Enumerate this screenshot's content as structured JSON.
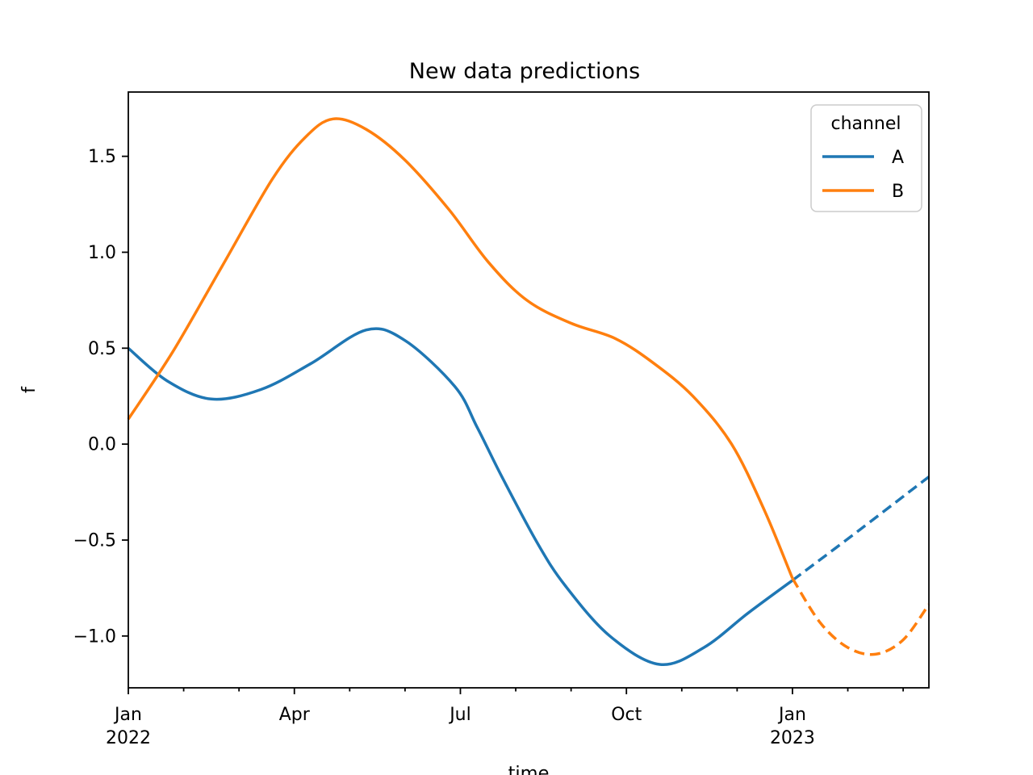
{
  "chart_data": {
    "type": "line",
    "title": "New data predictions",
    "xlabel": "time",
    "ylabel": "f",
    "grid": false,
    "legend": {
      "title": "channel",
      "position": "upper right",
      "entries": [
        {
          "label": "A",
          "color": "#1f77b4"
        },
        {
          "label": "B",
          "color": "#ff7f0e"
        }
      ]
    },
    "axes": {
      "x_unit": "months since 2022-01-01",
      "xlim": [
        0,
        14.465
      ],
      "ylim": [
        -1.27,
        1.835
      ],
      "x_major_ticks": [
        {
          "pos": 0,
          "label": "Jan",
          "sublabel": "2022"
        },
        {
          "pos": 3,
          "label": "Apr",
          "sublabel": ""
        },
        {
          "pos": 6,
          "label": "Jul",
          "sublabel": ""
        },
        {
          "pos": 9,
          "label": "Oct",
          "sublabel": ""
        },
        {
          "pos": 12,
          "label": "Jan",
          "sublabel": "2023"
        }
      ],
      "x_minor_ticks": [
        1,
        2,
        4,
        5,
        7,
        8,
        10,
        11,
        13,
        14
      ],
      "y_ticks": [
        {
          "v": 1.5,
          "label": "1.5"
        },
        {
          "v": 1.0,
          "label": "1.0"
        },
        {
          "v": 0.5,
          "label": "0.5"
        },
        {
          "v": 0.0,
          "label": "0.0"
        },
        {
          "v": -0.5,
          "label": "−0.5"
        },
        {
          "v": -1.0,
          "label": "−1.0"
        }
      ]
    },
    "series": [
      {
        "name": "A",
        "segment": "observed",
        "style": "solid",
        "color": "#1f77b4",
        "points": [
          [
            0,
            0.5
          ],
          [
            0.7,
            0.33
          ],
          [
            1.5,
            0.235
          ],
          [
            2.4,
            0.285
          ],
          [
            3.3,
            0.42
          ],
          [
            4.3,
            0.595
          ],
          [
            5.0,
            0.54
          ],
          [
            5.9,
            0.3
          ],
          [
            6.3,
            0.09
          ],
          [
            6.75,
            -0.17
          ],
          [
            7.4,
            -0.52
          ],
          [
            7.9,
            -0.74
          ],
          [
            8.7,
            -1.0
          ],
          [
            9.6,
            -1.148
          ],
          [
            10.4,
            -1.06
          ],
          [
            11.2,
            -0.88
          ],
          [
            12,
            -0.71
          ]
        ]
      },
      {
        "name": "A",
        "segment": "prediction",
        "style": "dashed",
        "color": "#1f77b4",
        "points": [
          [
            12,
            -0.71
          ],
          [
            13.2,
            -0.45
          ],
          [
            14.465,
            -0.17
          ]
        ]
      },
      {
        "name": "B",
        "segment": "observed",
        "style": "solid",
        "color": "#ff7f0e",
        "points": [
          [
            0,
            0.13
          ],
          [
            0.8,
            0.48
          ],
          [
            1.7,
            0.93
          ],
          [
            2.6,
            1.38
          ],
          [
            3.2,
            1.6
          ],
          [
            3.7,
            1.695
          ],
          [
            4.3,
            1.64
          ],
          [
            5.0,
            1.48
          ],
          [
            5.8,
            1.22
          ],
          [
            6.5,
            0.95
          ],
          [
            7.2,
            0.75
          ],
          [
            8.0,
            0.63
          ],
          [
            8.8,
            0.55
          ],
          [
            9.5,
            0.42
          ],
          [
            10.2,
            0.25
          ],
          [
            10.9,
            0.0
          ],
          [
            11.5,
            -0.35
          ],
          [
            12,
            -0.7
          ]
        ]
      },
      {
        "name": "B",
        "segment": "prediction",
        "style": "dashed",
        "color": "#ff7f0e",
        "points": [
          [
            12,
            -0.7
          ],
          [
            12.5,
            -0.93
          ],
          [
            13.0,
            -1.06
          ],
          [
            13.5,
            -1.095
          ],
          [
            14.0,
            -1.02
          ],
          [
            14.465,
            -0.835
          ]
        ]
      }
    ]
  }
}
